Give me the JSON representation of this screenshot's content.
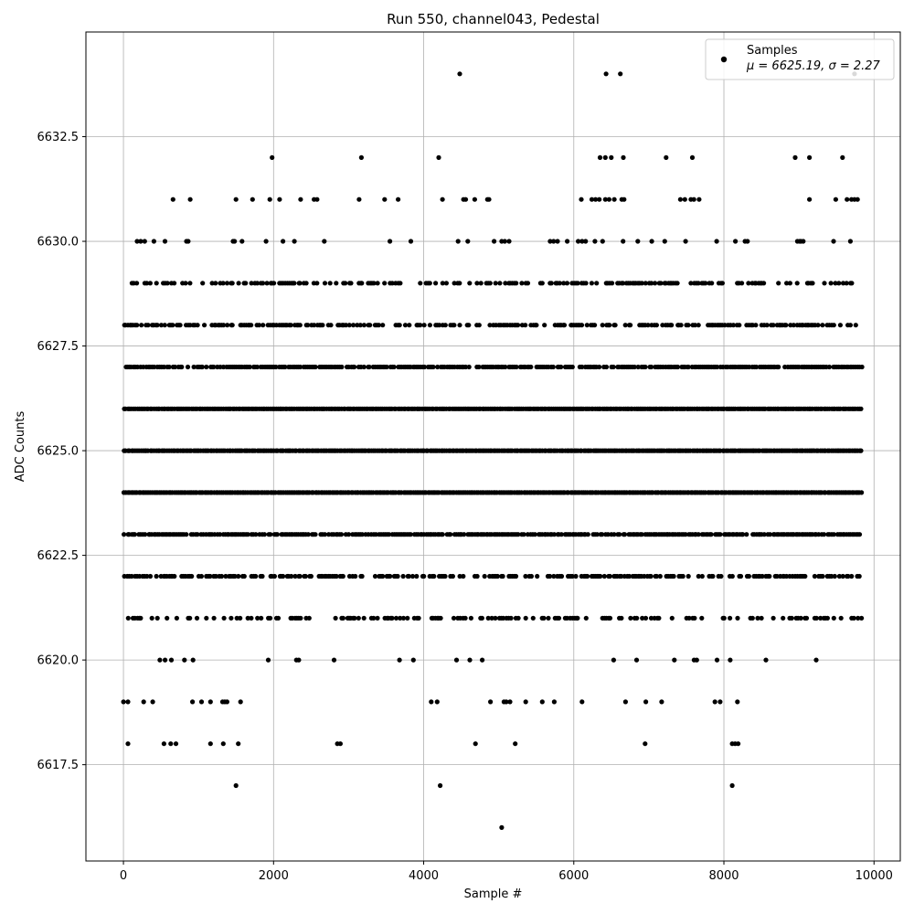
{
  "chart_data": {
    "type": "scatter",
    "title": "Run 550, channel043, Pedestal",
    "xlabel": "Sample #",
    "ylabel": "ADC Counts",
    "xlim": [
      -500,
      10350
    ],
    "ylim": [
      6615.2,
      6635.0
    ],
    "xticks": [
      0,
      2000,
      4000,
      6000,
      8000,
      10000
    ],
    "xtick_labels": [
      "0",
      "2000",
      "4000",
      "6000",
      "8000",
      "10000"
    ],
    "yticks": [
      6617.5,
      6620.0,
      6622.5,
      6625.0,
      6627.5,
      6630.0,
      6632.5
    ],
    "ytick_labels": [
      "6617.5",
      "6620.0",
      "6622.5",
      "6625.0",
      "6627.5",
      "6630.0",
      "6632.5"
    ],
    "grid": true,
    "marker_color": "#000000",
    "legend": {
      "position": "top-right",
      "series_name": "Samples",
      "stats_text": "μ = 6625.19, σ = 2.27"
    },
    "series": [
      {
        "name": "Samples",
        "n_samples": 9840,
        "sample_range": [
          0,
          9840
        ],
        "level_density": {
          "6625": 1.0,
          "6624": 1.0,
          "6626": 1.0,
          "6623": 0.85,
          "6627": 0.82,
          "6622": 0.6,
          "6628": 0.6,
          "6621": 0.4,
          "6629": 0.45,
          "6620": 0.06,
          "6630": 0.12
        },
        "outliers": [
          [
            4480,
            6634
          ],
          [
            6430,
            6634
          ],
          [
            6620,
            6634
          ],
          [
            9740,
            6634
          ],
          [
            1980,
            6632
          ],
          [
            3170,
            6632
          ],
          [
            4200,
            6632
          ],
          [
            6350,
            6632
          ],
          [
            6420,
            6632
          ],
          [
            6500,
            6632
          ],
          [
            6660,
            6632
          ],
          [
            7230,
            6632
          ],
          [
            7580,
            6632
          ],
          [
            8950,
            6632
          ],
          [
            9140,
            6632
          ],
          [
            9580,
            6632
          ],
          [
            660,
            6631
          ],
          [
            890,
            6631
          ],
          [
            1500,
            6631
          ],
          [
            1720,
            6631
          ],
          [
            1950,
            6631
          ],
          [
            2080,
            6631
          ],
          [
            2360,
            6631
          ],
          [
            2540,
            6631
          ],
          [
            2580,
            6631
          ],
          [
            3140,
            6631
          ],
          [
            3480,
            6631
          ],
          [
            3660,
            6631
          ],
          [
            4250,
            6631
          ],
          [
            4530,
            6631
          ],
          [
            4560,
            6631
          ],
          [
            4680,
            6631
          ],
          [
            4850,
            6631
          ],
          [
            4870,
            6631
          ],
          [
            6100,
            6631
          ],
          [
            6240,
            6631
          ],
          [
            6290,
            6631
          ],
          [
            6340,
            6631
          ],
          [
            6420,
            6631
          ],
          [
            6470,
            6631
          ],
          [
            6540,
            6631
          ],
          [
            6640,
            6631
          ],
          [
            6670,
            6631
          ],
          [
            7420,
            6631
          ],
          [
            7480,
            6631
          ],
          [
            7560,
            6631
          ],
          [
            7600,
            6631
          ],
          [
            7670,
            6631
          ],
          [
            9140,
            6631
          ],
          [
            9490,
            6631
          ],
          [
            9640,
            6631
          ],
          [
            9700,
            6631
          ],
          [
            9740,
            6631
          ],
          [
            9780,
            6631
          ],
          [
            0,
            6619
          ],
          [
            60,
            6619
          ],
          [
            270,
            6619
          ],
          [
            390,
            6619
          ],
          [
            920,
            6619
          ],
          [
            1040,
            6619
          ],
          [
            1160,
            6619
          ],
          [
            1320,
            6619
          ],
          [
            1350,
            6619
          ],
          [
            1380,
            6619
          ],
          [
            1560,
            6619
          ],
          [
            4100,
            6619
          ],
          [
            4180,
            6619
          ],
          [
            4890,
            6619
          ],
          [
            5070,
            6619
          ],
          [
            5100,
            6619
          ],
          [
            5150,
            6619
          ],
          [
            5360,
            6619
          ],
          [
            5580,
            6619
          ],
          [
            5740,
            6619
          ],
          [
            6110,
            6619
          ],
          [
            6690,
            6619
          ],
          [
            6960,
            6619
          ],
          [
            7170,
            6619
          ],
          [
            7880,
            6619
          ],
          [
            7950,
            6619
          ],
          [
            8180,
            6619
          ],
          [
            60,
            6618
          ],
          [
            540,
            6618
          ],
          [
            630,
            6618
          ],
          [
            700,
            6618
          ],
          [
            1160,
            6618
          ],
          [
            1330,
            6618
          ],
          [
            1530,
            6618
          ],
          [
            2850,
            6618
          ],
          [
            2890,
            6618
          ],
          [
            4690,
            6618
          ],
          [
            5220,
            6618
          ],
          [
            6950,
            6618
          ],
          [
            8110,
            6618
          ],
          [
            8150,
            6618
          ],
          [
            8190,
            6618
          ],
          [
            1500,
            6617
          ],
          [
            4220,
            6617
          ],
          [
            8110,
            6617
          ],
          [
            5040,
            6616
          ]
        ]
      }
    ]
  }
}
